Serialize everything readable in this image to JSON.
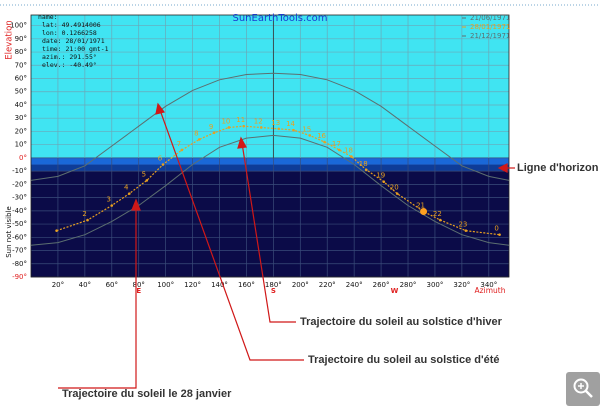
{
  "chart_data": {
    "type": "line",
    "title": "SunEarthTools.com",
    "y_label": "Elevation",
    "x_label": "Azimuth",
    "below_label": "Sun not visible",
    "info": [
      "name:",
      "lat: 49.4914006",
      "lon: 0.1266258",
      "date: 28/01/1971",
      "time: 21:00 gmt-1",
      "azim.: 291.55°",
      "elev.: -40.49°"
    ],
    "xlim": [
      0,
      355
    ],
    "ylim": [
      -90,
      108
    ],
    "xticks": [
      {
        "value": 20,
        "label": "20°"
      },
      {
        "value": 40,
        "label": "40°"
      },
      {
        "value": 60,
        "label": "60°"
      },
      {
        "value": 80,
        "label": "80°"
      },
      {
        "value": 100,
        "label": "100°"
      },
      {
        "value": 120,
        "label": "120°"
      },
      {
        "value": 140,
        "label": "140°"
      },
      {
        "value": 160,
        "label": "160°"
      },
      {
        "value": 180,
        "label": "180°"
      },
      {
        "value": 200,
        "label": "200°"
      },
      {
        "value": 220,
        "label": "220°"
      },
      {
        "value": 240,
        "label": "240°"
      },
      {
        "value": 260,
        "label": "260°"
      },
      {
        "value": 280,
        "label": "280°"
      },
      {
        "value": 300,
        "label": "300°"
      },
      {
        "value": 320,
        "label": "320°"
      },
      {
        "value": 340,
        "label": "340°"
      }
    ],
    "yticks": [
      {
        "value": 100,
        "label": "100°"
      },
      {
        "value": 90,
        "label": "90°"
      },
      {
        "value": 80,
        "label": "80°"
      },
      {
        "value": 70,
        "label": "70°"
      },
      {
        "value": 60,
        "label": "60°"
      },
      {
        "value": 50,
        "label": "50°"
      },
      {
        "value": 40,
        "label": "40°"
      },
      {
        "value": 30,
        "label": "30°"
      },
      {
        "value": 20,
        "label": "20°"
      },
      {
        "value": 10,
        "label": "10°"
      },
      {
        "value": 0,
        "label": "0°"
      },
      {
        "value": -10,
        "label": "-10°"
      },
      {
        "value": -20,
        "label": "-20°"
      },
      {
        "value": -30,
        "label": "-30°"
      },
      {
        "value": -40,
        "label": "-40°"
      },
      {
        "value": -50,
        "label": "-50°"
      },
      {
        "value": -60,
        "label": "-60°"
      },
      {
        "value": -70,
        "label": "-70°"
      },
      {
        "value": -80,
        "label": "-80°"
      },
      {
        "value": -90,
        "label": "-90°"
      }
    ],
    "compass": [
      {
        "value": 80,
        "label": "E"
      },
      {
        "value": 180,
        "label": "S"
      },
      {
        "value": 270,
        "label": "W"
      }
    ],
    "grid": true,
    "series": [
      {
        "name": "21/06/1971",
        "color": "#5c6f70",
        "x": [
          0,
          20,
          40,
          60,
          80,
          100,
          120,
          140,
          160,
          180,
          200,
          220,
          240,
          260,
          280,
          300,
          320,
          340,
          355
        ],
        "values": [
          -17,
          -14,
          -6,
          9,
          24,
          39,
          51,
          59,
          63,
          64,
          63,
          59,
          51,
          39,
          24,
          9,
          -6,
          -14,
          -17
        ]
      },
      {
        "name": "28/01/1971",
        "color": "#e8a020",
        "x": [
          19,
          42,
          60,
          73,
          86,
          98,
          112,
          125,
          136,
          147,
          158,
          171,
          184,
          195,
          207,
          218,
          229,
          238,
          249,
          262,
          272,
          291.55,
          304,
          323,
          348
        ],
        "values": [
          -55,
          -47,
          -36,
          -27,
          -17,
          -5,
          6,
          14,
          19,
          23,
          24,
          23,
          22,
          21,
          17,
          12,
          6,
          1,
          -9,
          -18,
          -27,
          -40.49,
          -47,
          -55,
          -58
        ],
        "point_labels": [
          null,
          "2",
          "3",
          "4",
          "5",
          "6",
          "7",
          "8",
          "9",
          "10",
          "11",
          "12",
          "13",
          "14",
          "15",
          "16",
          "17",
          "18",
          "18",
          "19",
          "20",
          "21",
          "22",
          "23",
          "0"
        ]
      },
      {
        "name": "21/12/1971",
        "color": "#5c6f70",
        "x": [
          0,
          20,
          40,
          60,
          80,
          100,
          120,
          140,
          160,
          180,
          200,
          220,
          240,
          260,
          280,
          300,
          320,
          340,
          355
        ],
        "values": [
          -66,
          -64,
          -58,
          -48,
          -36,
          -21,
          -5,
          8,
          15,
          17,
          15,
          8,
          -5,
          -21,
          -36,
          -48,
          -58,
          -64,
          -66
        ]
      }
    ],
    "sun_position": {
      "azimuth": 291.55,
      "elevation": -40.49
    }
  },
  "annotations": {
    "horizon": "Ligne d'horizon",
    "winter": "Trajectoire du soleil au solstice d'hiver",
    "summer": "Trajectoire du soleil au solstice d'été",
    "january": "Trajectoire du soleil  le 28 janvier"
  }
}
